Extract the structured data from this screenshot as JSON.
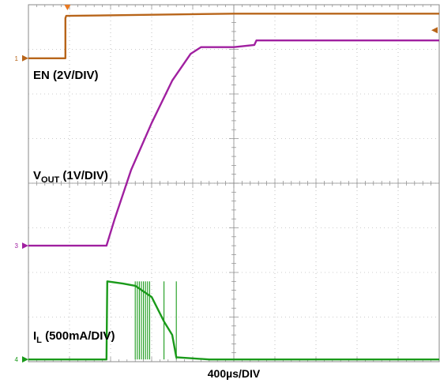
{
  "chart_data": {
    "type": "line",
    "title": "",
    "xlabel": "400µs/DIV",
    "ylabel": "",
    "x_divisions": 10,
    "y_divisions": 8,
    "grid": true,
    "series": [
      {
        "name": "EN",
        "label_main": "EN (2V/DIV)",
        "channel": "1",
        "color": "#b8651a",
        "x": [
          0,
          0.9,
          0.9,
          0.92,
          5.0,
          10
        ],
        "y": [
          6.8,
          6.8,
          7.7,
          7.75,
          7.8,
          7.8
        ]
      },
      {
        "name": "VOUT",
        "label_main": "V",
        "label_sub": "OUT",
        "label_tail": " (1V/DIV)",
        "channel": "3",
        "color": "#a020a0",
        "x": [
          0,
          1.9,
          2.1,
          2.5,
          3.0,
          3.5,
          3.95,
          4.2,
          4.35,
          5.0,
          5.5,
          5.55,
          6.0,
          7.0,
          10
        ],
        "y": [
          2.6,
          2.6,
          3.2,
          4.3,
          5.35,
          6.3,
          6.9,
          7.05,
          7.05,
          7.05,
          7.1,
          7.2,
          7.2,
          7.2,
          7.2
        ]
      },
      {
        "name": "IL",
        "label_main": "I",
        "label_sub": "L",
        "label_tail": " (500mA/DIV)",
        "channel": "4",
        "color": "#1a9a1a",
        "x": [
          0,
          1.9,
          1.92,
          2.3,
          2.6,
          3.0,
          3.3,
          3.5,
          3.6,
          4.4,
          10
        ],
        "y": [
          0.05,
          0.05,
          1.8,
          1.75,
          1.7,
          1.45,
          0.9,
          0.6,
          0.1,
          0.05,
          0.05
        ],
        "spikes_x": [
          2.6,
          2.65,
          2.7,
          2.75,
          2.8,
          2.85,
          2.9,
          2.95,
          3.3,
          3.6
        ],
        "spikes_y": [
          1.8,
          1.8,
          1.8,
          1.8,
          1.8,
          1.8,
          1.8,
          1.8,
          1.8,
          1.8
        ]
      }
    ]
  }
}
